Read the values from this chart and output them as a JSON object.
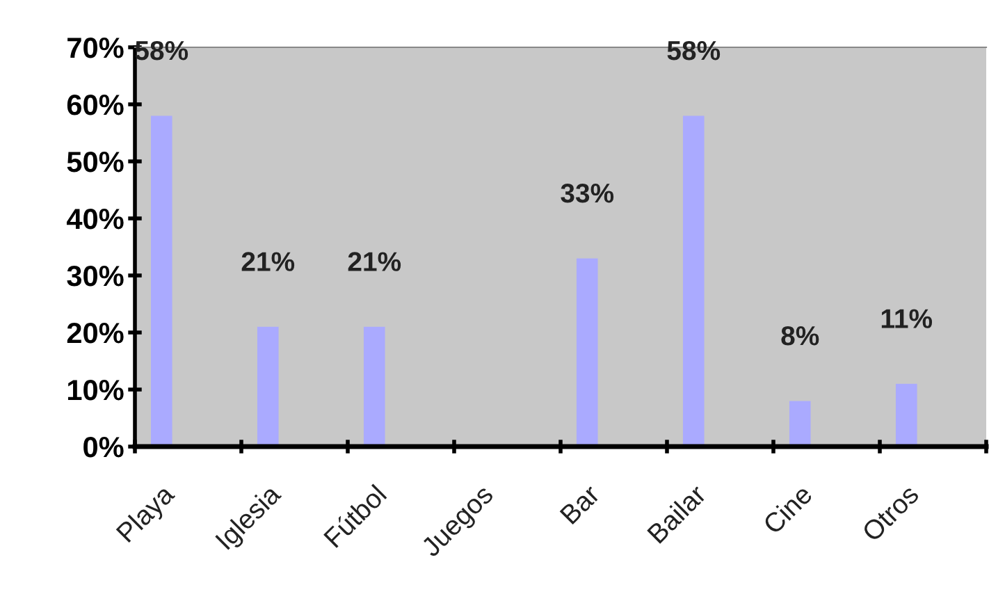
{
  "chart_data": {
    "type": "bar",
    "categories": [
      "Playa",
      "Iglesia",
      "Fútbol",
      "Juegos",
      "Bar",
      "Bailar",
      "Cine",
      "Otros"
    ],
    "values": [
      58,
      21,
      21,
      null,
      33,
      58,
      8,
      11
    ],
    "value_labels": [
      "58%",
      "21%",
      "21%",
      null,
      "33%",
      "58%",
      "8%",
      "11%"
    ],
    "color": "#aaaaff",
    "ylim": [
      0,
      70
    ],
    "yticks": [
      {
        "value": 0,
        "label": "0%"
      },
      {
        "value": 10,
        "label": "10%"
      },
      {
        "value": 20,
        "label": "20%"
      },
      {
        "value": 30,
        "label": "30%"
      },
      {
        "value": 40,
        "label": "40%"
      },
      {
        "value": 50,
        "label": "50%"
      },
      {
        "value": 60,
        "label": "60%"
      },
      {
        "value": 70,
        "label": "70%"
      }
    ],
    "grid": false
  }
}
